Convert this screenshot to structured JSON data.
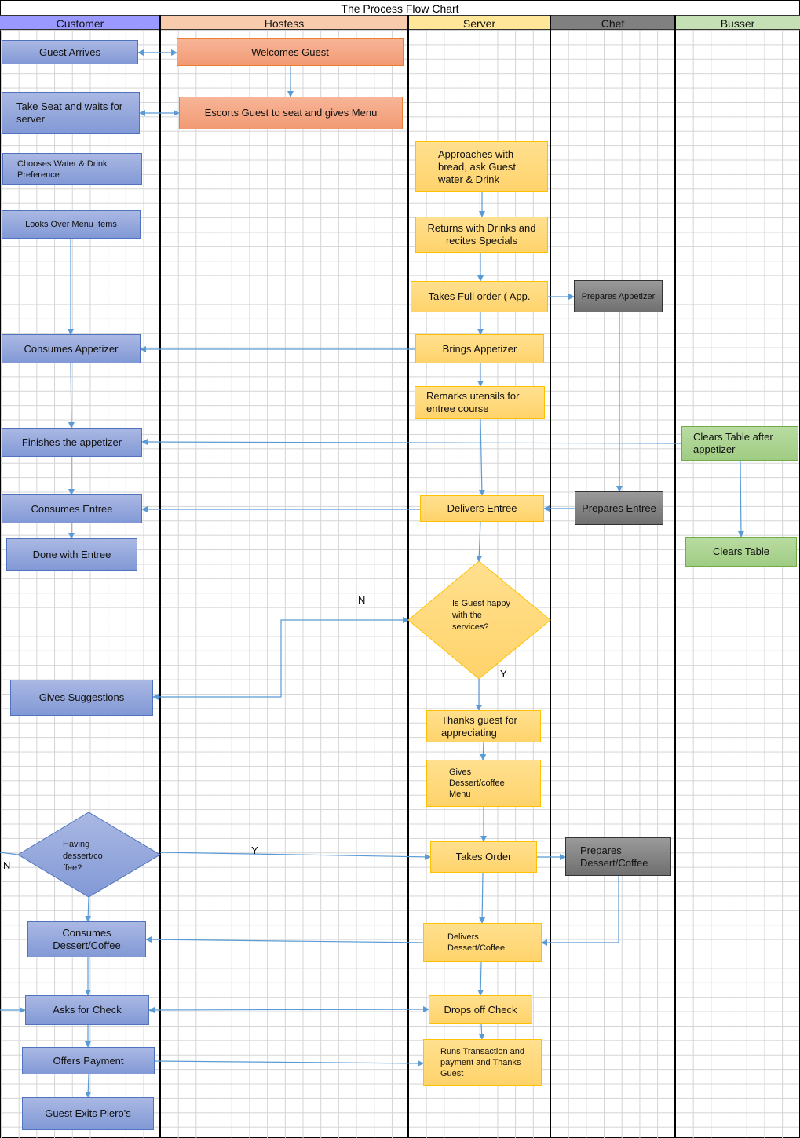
{
  "title": "The Process  Flow Chart",
  "lanes": [
    {
      "name": "Customer",
      "color": "#9999ff"
    },
    {
      "name": "Hostess",
      "color": "#f8cbad"
    },
    {
      "name": "Server",
      "color": "#ffe699"
    },
    {
      "name": "Chef",
      "color": "#808080"
    },
    {
      "name": "Busser",
      "color": "#c5e0b4"
    }
  ],
  "customer": {
    "guest_arrives": "Guest Arrives",
    "take_seat": "Take Seat and waits for server",
    "chooses_water": "Chooses Water & Drink Preference",
    "looks_menu": "Looks Over Menu Items",
    "consumes_appetizer": "Consumes Appetizer",
    "finishes_appetizer": "Finishes the appetizer",
    "consumes_entree": "Consumes Entree",
    "done_entree": "Done with Entree",
    "gives_suggestions": "Gives Suggestions",
    "dessert_decision": "Having dessert/co ffee?",
    "consumes_dessert": "Consumes Dessert/Coffee",
    "asks_check": "Asks for Check",
    "offers_payment": "Offers Payment",
    "guest_exits": "Guest Exits Piero's"
  },
  "hostess": {
    "welcomes": "Welcomes Guest",
    "escorts": "Escorts Guest to seat  and gives Menu"
  },
  "server": {
    "approaches": "Approaches with bread, ask Guest water & Drink",
    "returns": "Returns with Drinks and recites Specials",
    "takes_order": "Takes Full order ( App.",
    "brings_appetizer": "Brings Appetizer",
    "remarks_utensils": "Remarks utensils for entree course",
    "delivers_entree": "Delivers Entree",
    "happy_decision": "Is Guest happy with the services?",
    "thanks_guest": "Thanks guest for appreciating",
    "gives_dessert_menu": "Gives Dessert/coffee Menu",
    "takes_dessert_order": "Takes Order",
    "delivers_dessert": "Delivers Dessert/Coffee",
    "drops_check": "Drops off Check",
    "runs_transaction": "Runs Transaction and payment and Thanks Guest"
  },
  "chef": {
    "prepares_appetizer": "Prepares Appetizer",
    "prepares_entree": "Prepares Entree",
    "prepares_dessert": "Prepares Dessert/Coffee"
  },
  "busser": {
    "clears_after_appetizer": "Clears Table after appetizer",
    "clears_table": "Clears Table"
  },
  "labels": {
    "yes": "Y",
    "no": "N"
  },
  "connector_color": "#5b9bd5"
}
